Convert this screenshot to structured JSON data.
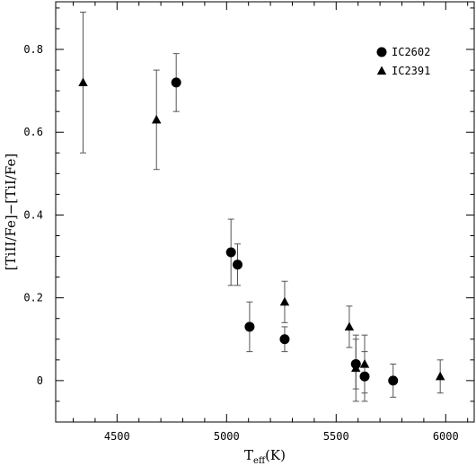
{
  "chart_data": {
    "type": "scatter",
    "xlabel": "T_eff(K)",
    "xlabel_main": "T",
    "xlabel_sub": "eff",
    "xlabel_unit": "(K)",
    "ylabel": "[TiII/Fe]−[TiI/Fe]",
    "xlim": [
      4220,
      6130
    ],
    "ylim": [
      -0.1,
      0.915
    ],
    "x_ticks": [
      4500,
      5000,
      5500,
      6000
    ],
    "y_ticks": [
      0,
      0.2,
      0.4,
      0.6,
      0.8
    ],
    "x_tick_labels": [
      "4500",
      "5000",
      "5500",
      "6000"
    ],
    "y_tick_labels": [
      "0",
      "0.2",
      "0.4",
      "0.6",
      "0.8"
    ],
    "grid": false,
    "legend_position": "top-right",
    "series": [
      {
        "name": "IC2602",
        "marker": "circle",
        "color": "#000000",
        "points": [
          {
            "x": 4770,
            "y": 0.72,
            "err": 0.07
          },
          {
            "x": 5020,
            "y": 0.31,
            "err": 0.08
          },
          {
            "x": 5050,
            "y": 0.28,
            "err": 0.05
          },
          {
            "x": 5105,
            "y": 0.13,
            "err": 0.06
          },
          {
            "x": 5265,
            "y": 0.1,
            "err": 0.03
          },
          {
            "x": 5590,
            "y": 0.04,
            "err": 0.06
          },
          {
            "x": 5630,
            "y": 0.01,
            "err": 0.06
          },
          {
            "x": 5760,
            "y": 0.0,
            "err": 0.04
          }
        ]
      },
      {
        "name": "IC2391",
        "marker": "triangle",
        "color": "#000000",
        "points": [
          {
            "x": 4345,
            "y": 0.72,
            "err": 0.17
          },
          {
            "x": 4680,
            "y": 0.63,
            "err": 0.12
          },
          {
            "x": 5265,
            "y": 0.19,
            "err": 0.05
          },
          {
            "x": 5560,
            "y": 0.13,
            "err": 0.05
          },
          {
            "x": 5590,
            "y": 0.03,
            "err": 0.08
          },
          {
            "x": 5630,
            "y": 0.04,
            "err": 0.07
          },
          {
            "x": 5975,
            "y": 0.01,
            "err": 0.04
          }
        ]
      }
    ]
  }
}
